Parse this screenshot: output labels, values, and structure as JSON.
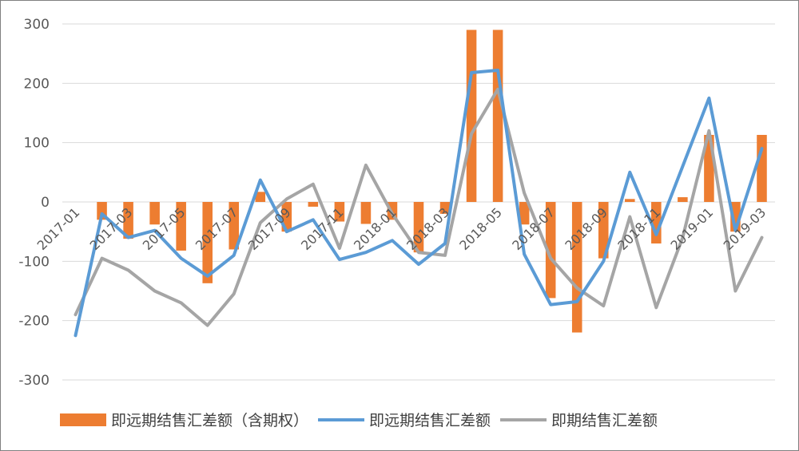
{
  "chart_data": {
    "type": "bar+line",
    "title": "",
    "xlabel": "",
    "ylabel": "",
    "ylim": [
      -300,
      300
    ],
    "yticks": [
      300,
      200,
      100,
      0,
      -100,
      -200,
      -300
    ],
    "grid": true,
    "legend_position": "bottom",
    "categories": [
      "2017-01",
      "2017-02",
      "2017-03",
      "2017-04",
      "2017-05",
      "2017-06",
      "2017-07",
      "2017-08",
      "2017-09",
      "2017-10",
      "2017-11",
      "2017-12",
      "2018-01",
      "2018-02",
      "2018-03",
      "2018-04",
      "2018-05",
      "2018-06",
      "2018-07",
      "2018-08",
      "2018-09",
      "2018-10",
      "2018-11",
      "2018-12",
      "2019-01",
      "2019-02",
      "2019-03"
    ],
    "xtick_labels": [
      "2017-01",
      "2017-03",
      "2017-05",
      "2017-07",
      "2017-09",
      "2017-11",
      "2018-01",
      "2018-03",
      "2018-05",
      "2018-07",
      "2018-09",
      "2018-11",
      "2019-01",
      "2019-03"
    ],
    "series": [
      {
        "name": "即远期结售汇差额（含期权）",
        "type": "bar",
        "color": "#ED7D31",
        "values": [
          0,
          -30,
          -62,
          -38,
          -82,
          -137,
          -80,
          17,
          -50,
          -8,
          -33,
          -37,
          -30,
          -85,
          -20,
          290,
          290,
          -38,
          -162,
          -220,
          -95,
          5,
          -70,
          8,
          113,
          -50,
          113
        ]
      },
      {
        "name": "即远期结售汇差额",
        "type": "line",
        "color": "#5B9BD5",
        "values": [
          -225,
          -20,
          -60,
          -48,
          -95,
          -125,
          -90,
          37,
          -50,
          -30,
          -97,
          -85,
          -65,
          -105,
          -70,
          218,
          222,
          -88,
          -173,
          -168,
          -100,
          50,
          -55,
          60,
          175,
          -48,
          90
        ]
      },
      {
        "name": "即期结售汇差额",
        "type": "line",
        "color": "#A5A5A5",
        "values": [
          -190,
          -95,
          -115,
          -150,
          -170,
          -208,
          -155,
          -35,
          5,
          30,
          -78,
          62,
          -20,
          -85,
          -90,
          115,
          190,
          15,
          -95,
          -145,
          -175,
          -25,
          -178,
          -60,
          120,
          -150,
          -60
        ]
      }
    ]
  }
}
